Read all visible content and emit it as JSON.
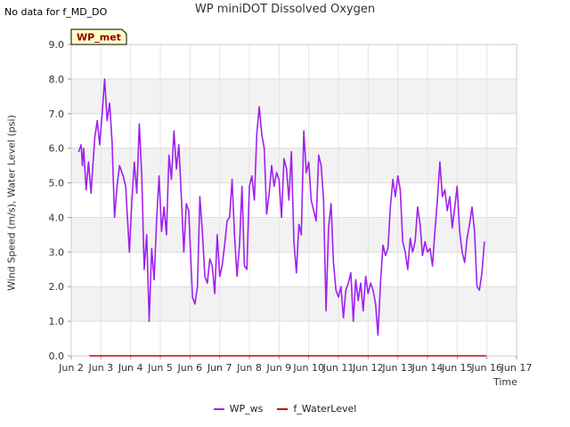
{
  "nodata_text": "No data for f_MD_DO",
  "chart_data": {
    "type": "line",
    "title": "WP miniDOT Dissolved Oxygen",
    "xlabel": "Time",
    "ylabel": "Wind Speed (m/s), Water Level (psi)",
    "ylim": [
      0,
      9
    ],
    "xlim": [
      "Jun 2",
      "Jun 17"
    ],
    "yticks": [
      "0.0",
      "1.0",
      "2.0",
      "3.0",
      "4.0",
      "5.0",
      "6.0",
      "7.0",
      "8.0",
      "9.0"
    ],
    "xticks": [
      "Jun 2",
      "Jun 3",
      "Jun 4",
      "Jun 5",
      "Jun 6",
      "Jun 7",
      "Jun 8",
      "Jun 9",
      "Jun 10",
      "Jun 11",
      "Jun 12",
      "Jun 13",
      "Jun 14",
      "Jun 15",
      "Jun 16",
      "Jun 17"
    ],
    "grid": true,
    "legend_position": "bottom",
    "annotation": "WP_met",
    "series": [
      {
        "name": "WP_ws",
        "color": "#a020f0",
        "x": [
          "2 06:00",
          "2 08:00",
          "2 09:00",
          "2 10:00",
          "2 12:00",
          "2 14:00",
          "2 16:00",
          "2 19:00",
          "2 21:00",
          "2 23:00",
          "3 01:00",
          "3 03:00",
          "3 05:00",
          "3 07:00",
          "3 09:00",
          "3 11:00",
          "3 13:00",
          "3 15:00",
          "3 18:00",
          "3 20:00",
          "3 23:00",
          "4 01:00",
          "4 03:00",
          "4 05:00",
          "4 07:00",
          "4 09:00",
          "4 11:00",
          "4 13:00",
          "4 15:00",
          "4 17:00",
          "4 19:00",
          "4 21:00",
          "4 23:00",
          "5 01:00",
          "5 03:00",
          "5 05:00",
          "5 07:00",
          "5 09:00",
          "5 11:00",
          "5 13:00",
          "5 15:00",
          "5 17:00",
          "5 19:00",
          "5 21:00",
          "5 23:00",
          "6 02:00",
          "6 04:00",
          "6 06:00",
          "6 08:00",
          "6 10:00",
          "6 12:00",
          "6 14:00",
          "6 16:00",
          "6 18:00",
          "6 20:00",
          "6 22:00",
          "7 00:00",
          "7 02:00",
          "7 04:00",
          "7 06:00",
          "7 08:00",
          "7 10:00",
          "7 12:00",
          "7 14:00",
          "7 16:00",
          "7 18:00",
          "7 20:00",
          "7 22:00",
          "8 00:00",
          "8 02:00",
          "8 04:00",
          "8 06:00",
          "8 08:00",
          "8 10:00",
          "8 12:00",
          "8 14:00",
          "8 16:00",
          "8 18:00",
          "8 20:00",
          "8 22:00",
          "9 00:00",
          "9 02:00",
          "9 04:00",
          "9 06:00",
          "9 08:00",
          "9 10:00",
          "9 12:00",
          "9 14:00",
          "9 16:00",
          "9 18:00",
          "9 20:00",
          "9 22:00",
          "10 00:00",
          "10 02:00",
          "10 04:00",
          "10 06:00",
          "10 08:00",
          "10 10:00",
          "10 12:00",
          "10 14:00",
          "10 16:00",
          "10 18:00",
          "10 20:00",
          "10 22:00",
          "11 00:00",
          "11 02:00",
          "11 04:00",
          "11 06:00",
          "11 08:00",
          "11 10:00",
          "11 12:00",
          "11 14:00",
          "11 16:00",
          "11 18:00",
          "11 20:00",
          "11 22:00",
          "12 00:00",
          "12 02:00",
          "12 04:00",
          "12 06:00",
          "12 08:00",
          "12 10:00",
          "12 12:00",
          "12 14:00",
          "12 16:00",
          "12 18:00",
          "12 20:00",
          "12 22:00",
          "13 00:00",
          "13 02:00",
          "13 04:00",
          "13 06:00",
          "13 08:00",
          "13 10:00",
          "13 12:00",
          "13 14:00",
          "13 16:00",
          "13 18:00",
          "13 20:00",
          "13 22:00",
          "14 00:00",
          "14 02:00",
          "14 04:00",
          "14 06:00",
          "14 08:00",
          "14 10:00",
          "14 12:00",
          "14 14:00",
          "14 16:00",
          "14 18:00",
          "14 20:00",
          "14 22:00",
          "15 00:00",
          "15 02:00",
          "15 04:00",
          "15 06:00",
          "15 08:00",
          "15 10:00",
          "15 12:00",
          "15 14:00",
          "15 16:00",
          "15 18:00",
          "15 20:00",
          "15 22:00"
        ],
        "values": [
          5.9,
          6.1,
          5.5,
          6.0,
          4.8,
          5.6,
          4.7,
          6.3,
          6.8,
          6.1,
          7.0,
          8.0,
          6.8,
          7.3,
          6.2,
          4.0,
          4.9,
          5.5,
          5.2,
          4.9,
          3.0,
          4.5,
          5.6,
          4.7,
          6.7,
          5.2,
          2.5,
          3.5,
          1.0,
          3.1,
          2.2,
          3.9,
          5.2,
          3.6,
          4.3,
          3.5,
          5.8,
          5.1,
          6.5,
          5.4,
          6.1,
          4.6,
          3.0,
          4.4,
          4.2,
          1.7,
          1.5,
          2.0,
          4.6,
          3.6,
          2.3,
          2.1,
          2.8,
          2.6,
          1.8,
          3.5,
          2.3,
          2.6,
          3.2,
          3.9,
          4.0,
          5.1,
          3.5,
          2.3,
          3.2,
          4.9,
          2.6,
          2.5,
          4.9,
          5.2,
          4.5,
          6.4,
          7.2,
          6.4,
          6.0,
          4.1,
          4.7,
          5.5,
          4.9,
          5.3,
          5.1,
          4.0,
          5.7,
          5.4,
          4.5,
          5.9,
          3.3,
          2.4,
          3.8,
          3.5,
          6.5,
          5.3,
          5.6,
          4.5,
          4.2,
          3.9,
          5.8,
          5.5,
          4.5,
          1.3,
          3.7,
          4.4,
          2.7,
          1.9,
          1.7,
          2.0,
          1.1,
          1.9,
          2.1,
          2.4,
          1.0,
          2.2,
          1.6,
          2.1,
          1.3,
          2.3,
          1.8,
          2.1,
          1.9,
          1.5,
          0.6,
          2.1,
          3.2,
          2.9,
          3.1,
          4.3,
          5.1,
          4.6,
          5.2,
          4.8,
          3.3,
          3.0,
          2.5,
          3.4,
          3.0,
          3.3,
          4.3,
          3.8,
          2.9,
          3.3,
          3.0,
          3.1,
          2.6,
          3.6,
          4.5,
          5.6,
          4.6,
          4.8,
          4.2,
          4.6,
          3.7,
          4.3,
          4.9,
          3.6,
          3.0,
          2.7,
          3.4,
          3.8,
          4.3,
          3.6,
          2.0,
          1.9,
          2.4,
          3.3
        ]
      },
      {
        "name": "f_WaterLevel",
        "color": "#cc0000",
        "x": [
          "2 15:00",
          "15 23:00"
        ],
        "values": [
          0,
          0
        ]
      }
    ]
  }
}
